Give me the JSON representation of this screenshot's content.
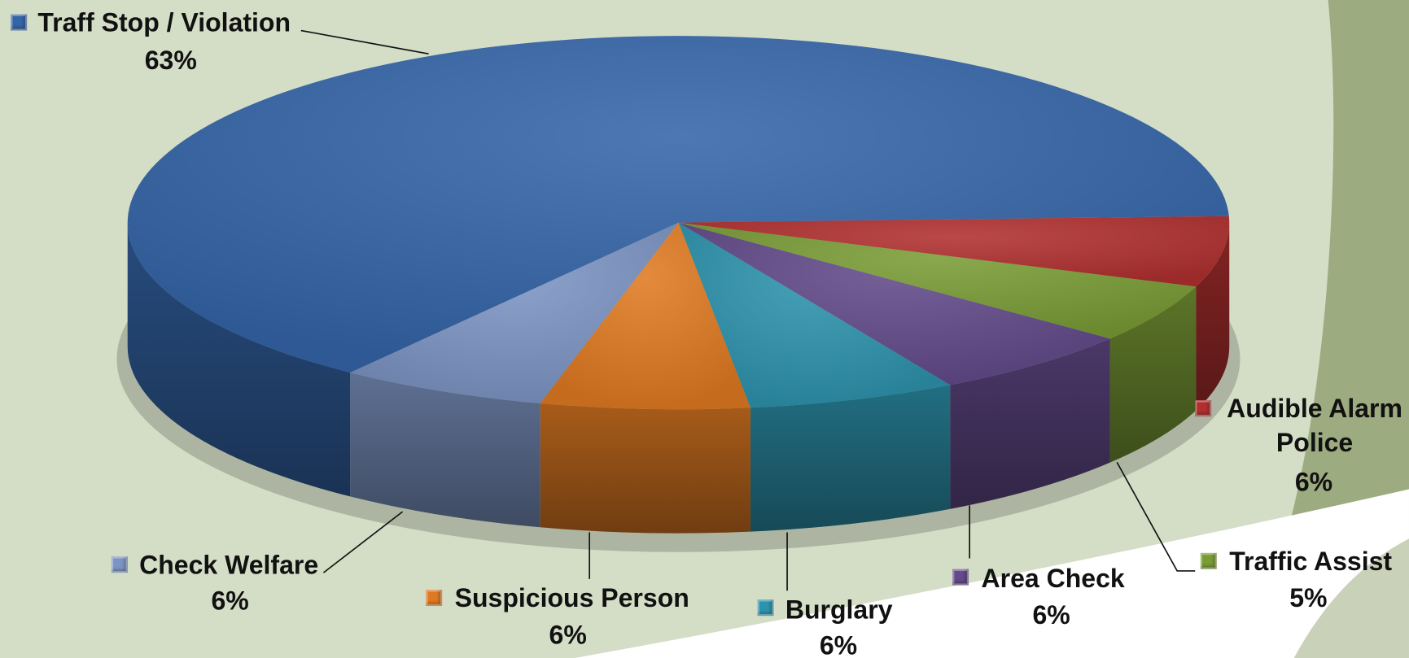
{
  "chart_data": {
    "type": "pie",
    "categories": [
      "Traff Stop / Violation",
      "Audible Alarm Police",
      "Traffic Assist",
      "Area Check",
      "Burglary",
      "Suspicious Person",
      "Check Welfare"
    ],
    "values": [
      63,
      6,
      5,
      6,
      6,
      6,
      6
    ],
    "value_labels": [
      "63%",
      "6%",
      "5%",
      "6%",
      "6%",
      "6%",
      "6%"
    ],
    "colors": [
      "#3465a8",
      "#b0302f",
      "#7a9c35",
      "#634a8a",
      "#2d93ad",
      "#e07a22",
      "#7d95c4"
    ]
  }
}
